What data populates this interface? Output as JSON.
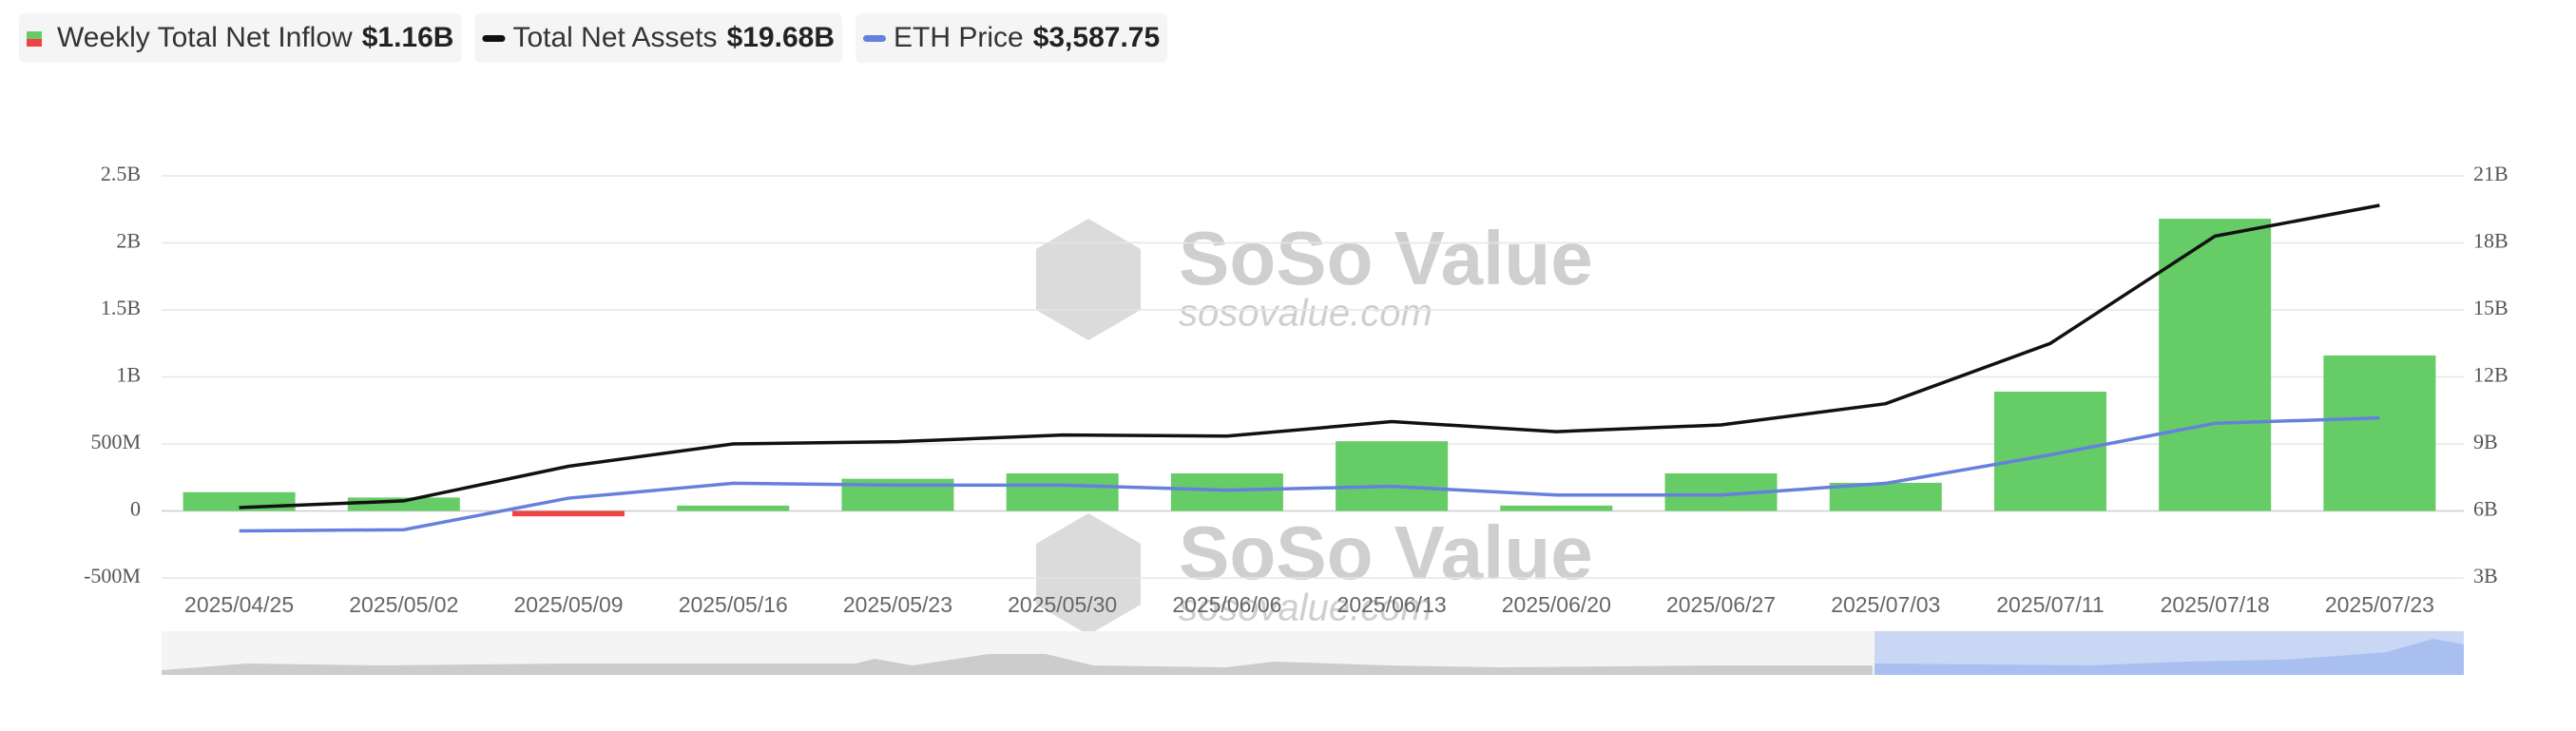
{
  "legend": [
    {
      "name": "Weekly Total Net Inflow",
      "value": "$1.16B"
    },
    {
      "name": "Total Net Assets",
      "value": "$19.68B"
    },
    {
      "name": "ETH Price",
      "value": "$3,587.75"
    }
  ],
  "watermark": {
    "brand": "SoSo Value",
    "site": "sosovalue.com"
  },
  "chart_data": {
    "type": "bar-line",
    "categories": [
      "2025/04/25",
      "2025/05/02",
      "2025/05/09",
      "2025/05/16",
      "2025/05/23",
      "2025/05/30",
      "2025/06/06",
      "2025/06/13",
      "2025/06/20",
      "2025/06/27",
      "2025/07/03",
      "2025/07/11",
      "2025/07/18",
      "2025/07/23"
    ],
    "ylim": [
      -0.5,
      2.5
    ],
    "yticks": [
      {
        "value": -0.5,
        "label": "-500M"
      },
      0,
      {
        "value": 0.5,
        "label": "500M"
      },
      {
        "value": 1,
        "label": "1B"
      },
      {
        "value": 1.5,
        "label": "1.5B"
      },
      {
        "value": 2,
        "label": "2B"
      },
      {
        "value": 2.5,
        "label": "2.5B"
      }
    ],
    "y2lim": [
      3,
      21
    ],
    "y2ticks": [
      {
        "value": 3,
        "label": "3B"
      },
      {
        "value": 6,
        "label": "6B"
      },
      {
        "value": 9,
        "label": "9B"
      },
      {
        "value": 12,
        "label": "12B"
      },
      {
        "value": 15,
        "label": "15B"
      },
      {
        "value": 18,
        "label": "18B"
      },
      {
        "value": 21,
        "label": "21B"
      }
    ],
    "y3lim": [
      1000,
      7500
    ],
    "grid": true,
    "series": [
      {
        "name": "Weekly Total Net Inflow",
        "type": "bar",
        "color": "#66cc66",
        "negative_color": "#ee4444",
        "values": [
          0.14,
          0.1,
          -0.04,
          0.04,
          0.24,
          0.28,
          0.28,
          0.52,
          0.04,
          0.28,
          0.21,
          0.89,
          2.18,
          1.16
        ]
      },
      {
        "name": "Total Net Assets",
        "type": "line",
        "axis": "y2",
        "color": "#111111",
        "values": [
          6.15,
          6.45,
          8.0,
          9.0,
          9.1,
          9.4,
          9.35,
          10.0,
          9.55,
          9.85,
          10.8,
          13.5,
          18.3,
          19.68
        ]
      },
      {
        "name": "ETH Price",
        "type": "line",
        "axis": "y3",
        "color": "#6680dd",
        "values": [
          1760,
          1780,
          2290,
          2530,
          2500,
          2500,
          2420,
          2480,
          2340,
          2340,
          2530,
          2990,
          3500,
          3587.75
        ]
      }
    ]
  }
}
